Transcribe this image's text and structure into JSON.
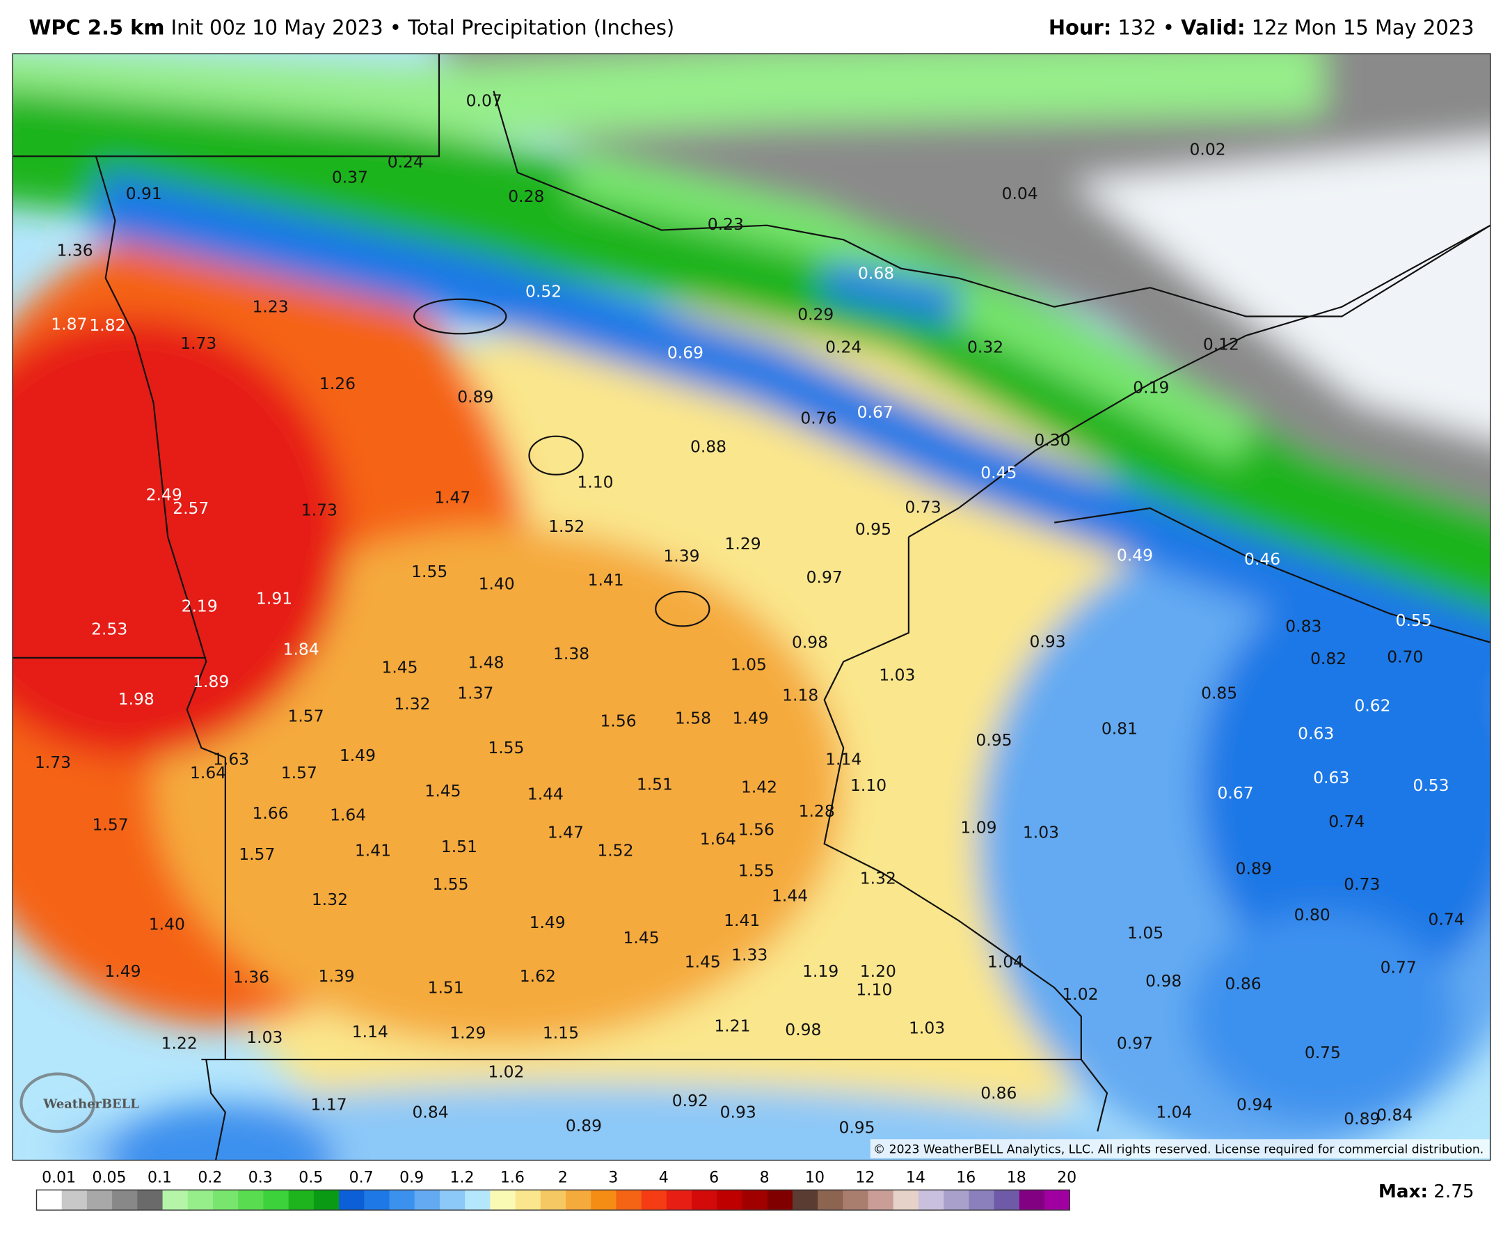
{
  "header": {
    "model": "WPC 2.5 km",
    "init": "Init 00z 10 May 2023",
    "separator": "•",
    "field": "Total Precipitation (Inches)",
    "hour_label": "Hour:",
    "hour": "132",
    "valid_label": "Valid:",
    "valid": "12z Mon 15 May 2023"
  },
  "map": {
    "labels": [
      "0.07",
      "0.24",
      "0.37",
      "0.91",
      "0.28",
      "0.23",
      "0.02",
      "0.04",
      "1.36",
      "0.52",
      "0.68",
      "1.23",
      "0.29",
      "1.87",
      "1.82",
      "1.73",
      "0.24",
      "0.32",
      "0.12",
      "0.69",
      "1.26",
      "0.89",
      "0.19",
      "0.76",
      "0.67",
      "0.88",
      "0.30",
      "2.49",
      "2.57",
      "1.73",
      "1.47",
      "1.10",
      "0.45",
      "0.73",
      "1.52",
      "0.95",
      "1.29",
      "1.39",
      "0.49",
      "0.46",
      "1.55",
      "1.40",
      "1.41",
      "0.97",
      "2.19",
      "1.91",
      "2.53",
      "0.83",
      "0.55",
      "0.98",
      "0.93",
      "1.84",
      "1.45",
      "1.48",
      "1.38",
      "1.05",
      "1.03",
      "0.82",
      "0.70",
      "1.89",
      "1.98",
      "1.32",
      "1.37",
      "1.18",
      "0.85",
      "0.62",
      "1.57",
      "1.56",
      "1.58",
      "1.49",
      "0.81",
      "0.95",
      "0.63",
      "1.55",
      "1.73",
      "1.63",
      "1.64",
      "1.57",
      "1.49",
      "1.14",
      "1.45",
      "1.44",
      "1.51",
      "1.42",
      "1.10",
      "0.67",
      "0.63",
      "0.53",
      "1.66",
      "1.64",
      "1.28",
      "1.57",
      "1.47",
      "1.56",
      "1.64",
      "1.09",
      "1.03",
      "0.74",
      "1.41",
      "1.51",
      "1.52",
      "1.57",
      "1.55",
      "1.32",
      "0.89",
      "1.55",
      "1.44",
      "0.73",
      "1.32",
      "1.40",
      "1.49",
      "1.45",
      "1.41",
      "0.80",
      "0.74",
      "1.05",
      "1.33",
      "1.45",
      "1.04",
      "1.49",
      "1.36",
      "1.39",
      "1.62",
      "1.51",
      "1.19",
      "1.20",
      "1.10",
      "0.98",
      "0.86",
      "0.77",
      "1.02",
      "1.22",
      "1.03",
      "1.14",
      "1.29",
      "1.15",
      "1.21",
      "0.98",
      "1.03",
      "0.97",
      "0.75",
      "1.02",
      "0.86",
      "1.17",
      "0.84",
      "0.92",
      "0.93",
      "0.89",
      "0.95",
      "1.04",
      "0.94",
      "0.89",
      "0.84"
    ],
    "logo": "WeatherBELL",
    "copyright": "© 2023 WeatherBELL Analytics, LLC. All rights reserved. License required for commercial distribution."
  },
  "colorbar": {
    "labels": [
      "0.01",
      "0.05",
      "0.1",
      "0.2",
      "0.3",
      "0.5",
      "0.7",
      "0.9",
      "1.2",
      "1.6",
      "2",
      "3",
      "4",
      "6",
      "8",
      "10",
      "12",
      "14",
      "16",
      "18",
      "20"
    ],
    "colors": [
      "#ffffff",
      "#c8c8c8",
      "#a8a8a8",
      "#888888",
      "#6a6a6a",
      "#b4f5a8",
      "#96ee8a",
      "#78e66e",
      "#5adc50",
      "#3cd23c",
      "#1eb41e",
      "#0a9a14",
      "#0c5fd6",
      "#1e78e6",
      "#3c91ee",
      "#64aaf2",
      "#8cc8f8",
      "#b4e6fc",
      "#fafab4",
      "#fae68c",
      "#f5c864",
      "#f5aa3c",
      "#f58c14",
      "#f56414",
      "#f53c14",
      "#e61e14",
      "#d20a0a",
      "#be0000",
      "#a00000",
      "#800000",
      "#5a3c32",
      "#8c6450",
      "#aa7e6e",
      "#c89e96",
      "#e6d2c8",
      "#c8c0dc",
      "#aaa0cc",
      "#8c80bc",
      "#6e5aa6",
      "#820082",
      "#a000a0"
    ]
  },
  "footer": {
    "max_label": "Max:",
    "max": "2.75"
  }
}
